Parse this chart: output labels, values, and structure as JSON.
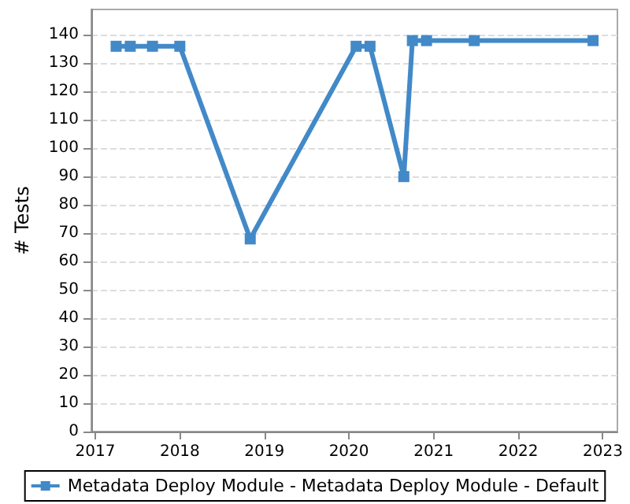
{
  "chart_data": {
    "type": "line",
    "ylabel": "# Tests",
    "x": [
      "2017-04-01",
      "2017-06-01",
      "2017-09-05",
      "2018-01-01",
      "2018-11-01",
      "2020-02-01",
      "2020-04-01",
      "2020-08-25",
      "2020-10-01",
      "2020-12-01",
      "2021-06-25",
      "2022-11-20"
    ],
    "series": [
      {
        "name": "Metadata Deploy Module - Metadata Deploy Module - Default",
        "color": "#4289c8",
        "values": [
          136,
          136,
          136,
          136,
          68,
          136,
          136,
          90,
          138,
          138,
          138,
          138
        ]
      }
    ],
    "xlim": [
      "2016-12-15",
      "2023-03-05"
    ],
    "xticks": [
      "2017",
      "2018",
      "2019",
      "2020",
      "2021",
      "2022",
      "2023"
    ],
    "ylim": [
      0,
      149
    ],
    "yticks": [
      0,
      10,
      20,
      30,
      40,
      50,
      60,
      70,
      80,
      90,
      100,
      110,
      120,
      130,
      140
    ],
    "grid": "y",
    "legend": "bottom",
    "marker": "square",
    "line_style": "solid"
  }
}
